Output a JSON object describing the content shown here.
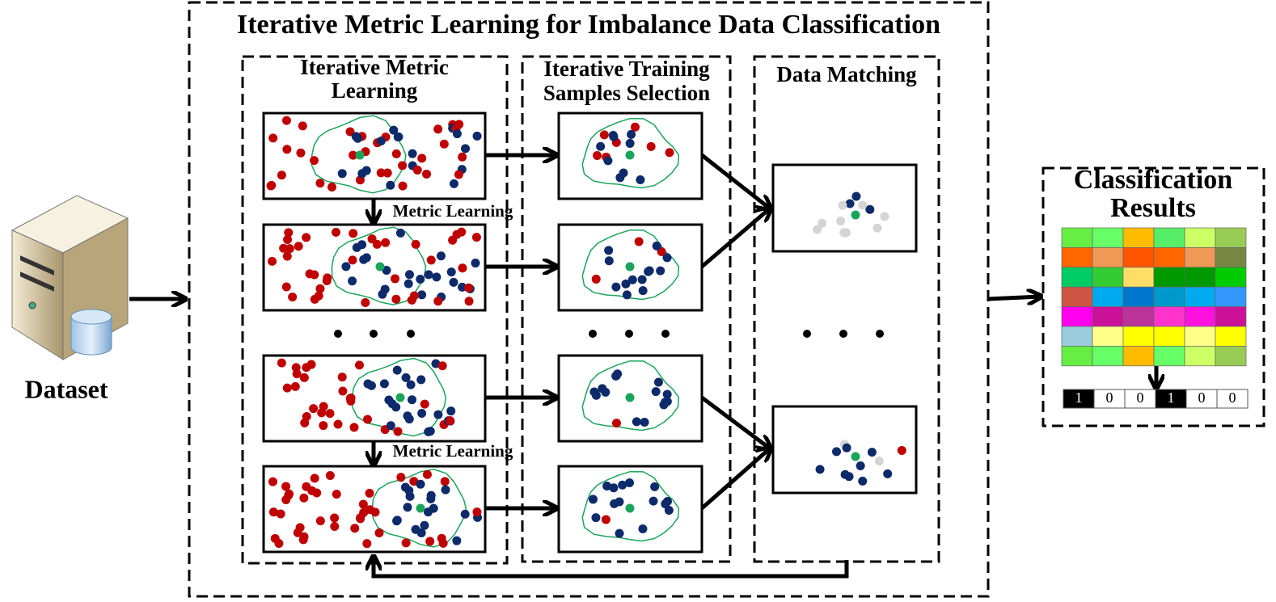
{
  "title": "Iterative Metric Learning for Imbalance Data Classification",
  "dataset": {
    "label": "Dataset"
  },
  "columns": [
    {
      "label": [
        "Iterative Metric",
        "Learning"
      ]
    },
    {
      "label": [
        "Iterative Training",
        "Samples Selection"
      ]
    },
    {
      "label": [
        "Data Matching"
      ]
    }
  ],
  "annotations": [
    "Metric Learning",
    "Metric Learning"
  ],
  "results": {
    "title": [
      "Classification",
      "Results"
    ],
    "binary": [
      "1",
      "0",
      "0",
      "1",
      "0",
      "0"
    ]
  }
}
